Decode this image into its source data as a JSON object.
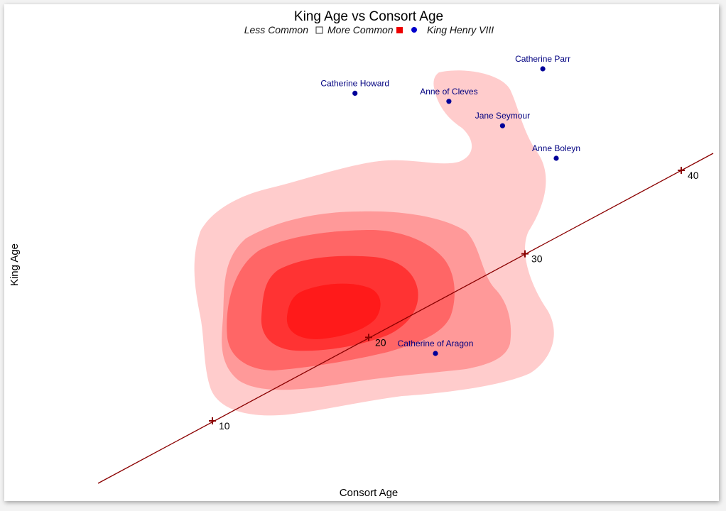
{
  "chart_data": {
    "type": "scatter",
    "title": "King Age vs Consort Age",
    "xlabel": "Consort Age",
    "ylabel": "King Age",
    "legend": {
      "placement": "top-center",
      "less_common": "Less Common",
      "more_common": "More Common",
      "king": "King Henry VIII"
    },
    "colors": {
      "density_levels": [
        "#ffcccc",
        "#ff9999",
        "#ff6666",
        "#ff3333",
        "#ff1a1a"
      ],
      "points": "#000099",
      "labels": "#000080",
      "diagonal": "#8b0000"
    },
    "points": [
      {
        "name": "Catherine of Aragon",
        "consort_age": 23,
        "king_age": 17
      },
      {
        "name": "Anne Boleyn",
        "consort_age": 32,
        "king_age": 41
      },
      {
        "name": "Jane Seymour",
        "consort_age": 28,
        "king_age": 45
      },
      {
        "name": "Anne of Cleves",
        "consort_age": 24,
        "king_age": 48
      },
      {
        "name": "Catherine Howard",
        "consort_age": 17,
        "king_age": 49
      },
      {
        "name": "Catherine Parr",
        "consort_age": 31,
        "king_age": 52
      }
    ],
    "diagonal_ticks": [
      "10",
      "20",
      "30",
      "40"
    ],
    "grid": false,
    "density_contours": true
  }
}
